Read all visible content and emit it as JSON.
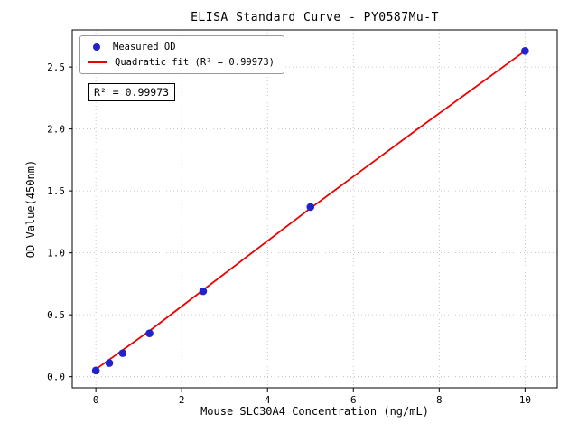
{
  "chart_data": {
    "type": "scatter",
    "title": "ELISA Standard Curve - PY0587Mu-T",
    "xlabel": "Mouse SLC30A4 Concentration (ng/mL)",
    "ylabel": "OD Value(450nm)",
    "annotation": "R² = 0.99973",
    "grid": true,
    "legend_position": "upper left",
    "xlim": [
      -0.55,
      10.75
    ],
    "ylim": [
      -0.09,
      2.8
    ],
    "xticks": [
      0,
      2,
      4,
      6,
      8,
      10
    ],
    "xtick_labels": [
      "0",
      "2",
      "4",
      "6",
      "8",
      "10"
    ],
    "yticks": [
      0,
      0.5,
      1.0,
      1.5,
      2.0,
      2.5
    ],
    "ytick_labels": [
      "0.0",
      "0.5",
      "1.0",
      "1.5",
      "2.0",
      "2.5"
    ],
    "colors": {
      "scatter": "#2222cc",
      "fit_line": "#ee0000",
      "grid": "#b8b8b8",
      "axis": "#000000"
    },
    "series": [
      {
        "name": "Measured OD",
        "type": "scatter",
        "color": "#2222cc",
        "x": [
          0,
          0.313,
          0.625,
          1.25,
          2.5,
          5,
          10
        ],
        "y": [
          0.05,
          0.11,
          0.19,
          0.35,
          0.69,
          1.37,
          2.63
        ]
      },
      {
        "name": "Quadratic fit (R² = 0.99973)",
        "type": "line",
        "color": "#ee0000",
        "x": [
          0,
          1.25,
          2.5,
          5,
          7.5,
          10
        ],
        "y": [
          0.06,
          0.37,
          0.7,
          1.36,
          2.0,
          2.63
        ]
      }
    ]
  }
}
